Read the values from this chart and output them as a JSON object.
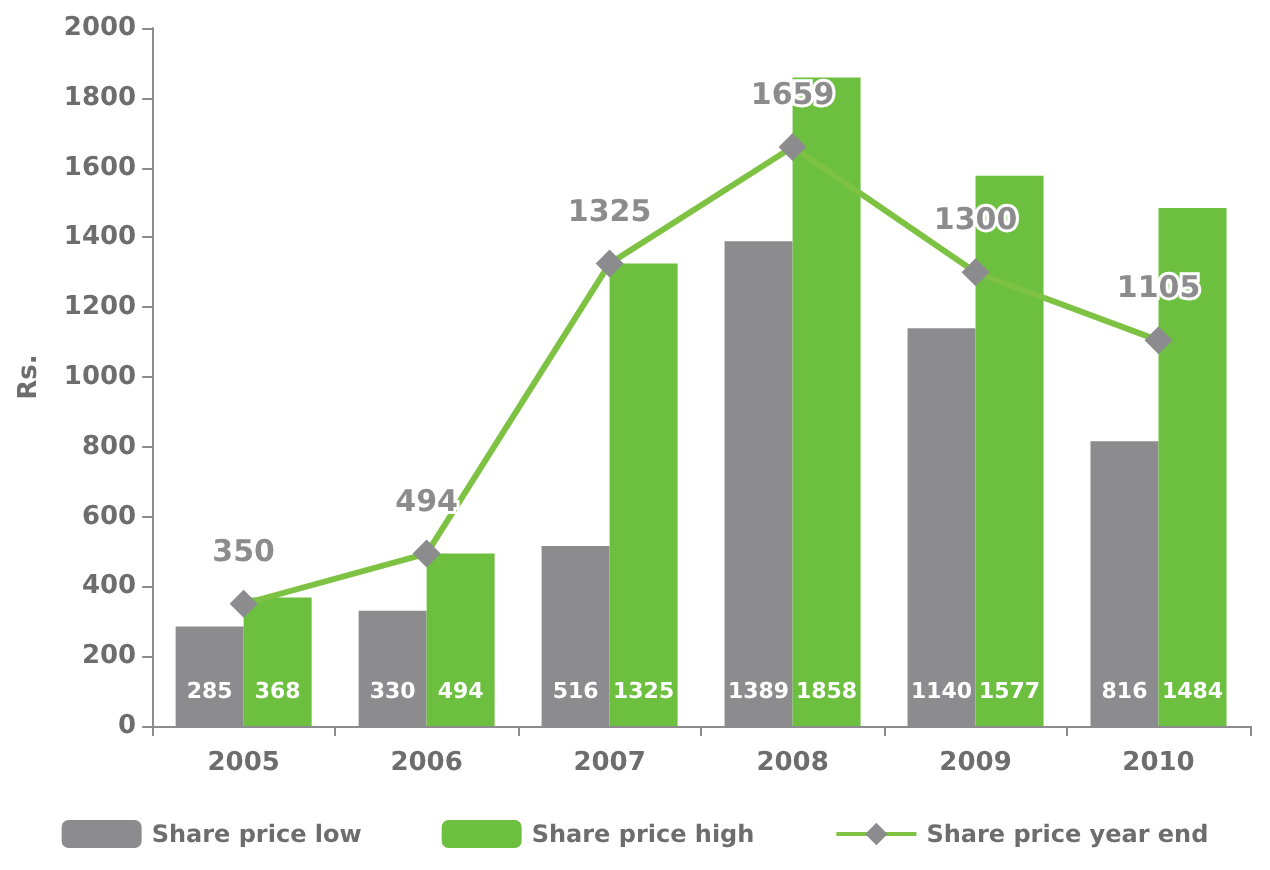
{
  "chart_data": {
    "type": "bar",
    "ylabel": "Rs.",
    "categories": [
      "2005",
      "2006",
      "2007",
      "2008",
      "2009",
      "2010"
    ],
    "series": [
      {
        "name": "Share price low",
        "color": "#8c8c8e",
        "values": [
          285,
          330,
          516,
          1389,
          1140,
          816
        ]
      },
      {
        "name": "Share price high",
        "color": "#6cbf3f",
        "values": [
          368,
          494,
          1325,
          1858,
          1577,
          1484
        ]
      },
      {
        "name": "Share price year end",
        "type": "line",
        "color": "#7dc242",
        "marker": "diamond",
        "values": [
          350,
          494,
          1325,
          1659,
          1300,
          1105
        ]
      }
    ],
    "ylim": [
      0,
      2000
    ],
    "yticks": [
      0,
      200,
      400,
      600,
      800,
      1000,
      1200,
      1400,
      1600,
      1800,
      2000
    ],
    "grid": false,
    "legend": "bottom",
    "data_labels": true
  }
}
